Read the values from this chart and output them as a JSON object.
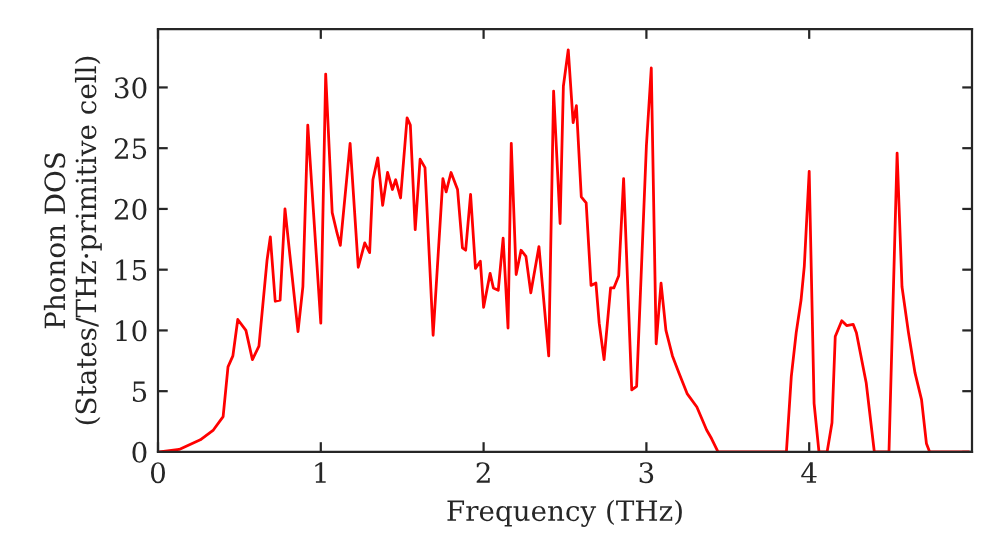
{
  "chart_data": {
    "type": "line",
    "xlabel": "Frequency (THz)",
    "ylabel": "Phonon DOS\n(States/THz·primitive cell)",
    "xlim": [
      0,
      5.0
    ],
    "xticks": [
      0,
      1,
      2,
      3,
      4
    ],
    "ylim": [
      0,
      34.8
    ],
    "yticks": [
      0,
      5,
      10,
      15,
      20,
      25,
      30
    ],
    "grid": false,
    "legend": false,
    "series": [
      {
        "color": "#ff0000",
        "x": [
          0.01,
          0.13,
          0.26,
          0.34,
          0.4,
          0.43,
          0.46,
          0.49,
          0.54,
          0.58,
          0.62,
          0.67,
          0.69,
          0.72,
          0.75,
          0.78,
          0.86,
          0.89,
          0.92,
          1.0,
          1.03,
          1.07,
          1.1,
          1.12,
          1.18,
          1.23,
          1.27,
          1.3,
          1.32,
          1.35,
          1.38,
          1.41,
          1.44,
          1.46,
          1.49,
          1.53,
          1.55,
          1.58,
          1.61,
          1.64,
          1.69,
          1.75,
          1.77,
          1.8,
          1.84,
          1.87,
          1.89,
          1.92,
          1.95,
          1.98,
          2.0,
          2.04,
          2.06,
          2.09,
          2.12,
          2.15,
          2.17,
          2.2,
          2.23,
          2.26,
          2.29,
          2.34,
          2.4,
          2.43,
          2.47,
          2.49,
          2.52,
          2.55,
          2.57,
          2.6,
          2.63,
          2.66,
          2.69,
          2.71,
          2.74,
          2.78,
          2.8,
          2.83,
          2.86,
          2.91,
          2.94,
          3.0,
          3.03,
          3.06,
          3.09,
          3.12,
          3.16,
          3.2,
          3.25,
          3.31,
          3.37,
          3.4,
          3.44,
          3.86,
          3.89,
          3.92,
          3.95,
          3.97,
          4.0,
          4.03,
          4.06,
          4.11,
          4.14,
          4.16,
          4.2,
          4.23,
          4.27,
          4.29,
          4.35,
          4.4,
          4.49,
          4.54,
          4.57,
          4.61,
          4.65,
          4.69,
          4.72,
          4.74,
          4.98
        ],
        "values": [
          0,
          0.2,
          1.0,
          1.8,
          2.9,
          7.0,
          7.9,
          10.9,
          10.0,
          7.6,
          8.7,
          15.8,
          17.7,
          12.4,
          12.5,
          20.0,
          9.9,
          13.6,
          26.9,
          10.6,
          31.1,
          19.7,
          18.0,
          17.0,
          25.4,
          15.2,
          17.2,
          16.4,
          22.4,
          24.2,
          20.3,
          23.0,
          21.6,
          22.4,
          20.9,
          27.5,
          26.9,
          18.3,
          24.1,
          23.4,
          9.6,
          22.5,
          21.4,
          23.0,
          21.6,
          16.8,
          16.6,
          21.2,
          15.1,
          15.7,
          11.9,
          14.7,
          13.5,
          13.3,
          17.6,
          10.2,
          25.4,
          14.6,
          16.6,
          16.1,
          13.1,
          16.9,
          7.9,
          29.7,
          18.8,
          30.1,
          33.1,
          27.1,
          28.5,
          21.0,
          20.5,
          13.7,
          13.9,
          10.6,
          7.6,
          13.5,
          13.5,
          14.5,
          22.5,
          5.1,
          5.4,
          25.2,
          31.6,
          8.9,
          13.9,
          10.0,
          7.9,
          6.5,
          4.8,
          3.7,
          1.8,
          1.1,
          0,
          0,
          6.2,
          9.8,
          12.5,
          15.3,
          23.1,
          4.0,
          0,
          0,
          2.4,
          9.5,
          10.8,
          10.4,
          10.5,
          9.8,
          5.7,
          0,
          0,
          24.6,
          13.6,
          9.8,
          6.5,
          4.3,
          0.7,
          0,
          0
        ]
      }
    ]
  }
}
